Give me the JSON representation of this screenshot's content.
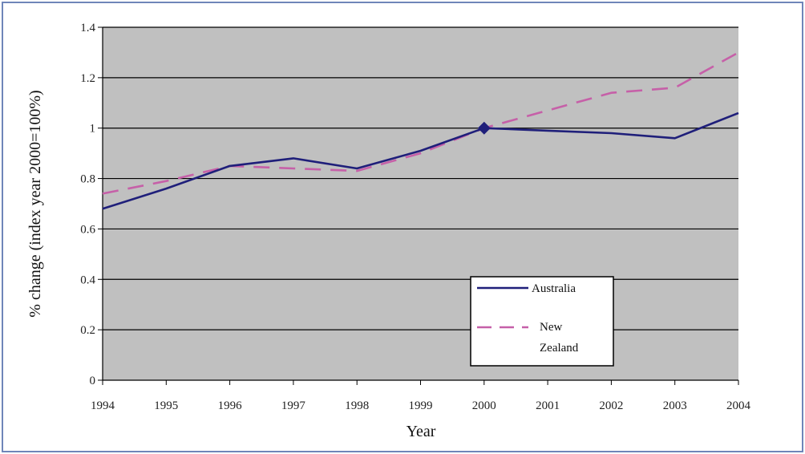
{
  "chart_data": {
    "type": "line",
    "title": "",
    "xlabel": "Year",
    "ylabel": "% change (index year 2000=100%)",
    "categories": [
      "1994",
      "1995",
      "1996",
      "1997",
      "1998",
      "1999",
      "2000",
      "2001",
      "2002",
      "2003",
      "2004"
    ],
    "ylim": [
      0,
      1.4
    ],
    "yticks": [
      "0",
      "0.2",
      "0.4",
      "0.6",
      "0.8",
      "1",
      "1.2",
      "1.4"
    ],
    "grid": true,
    "legend_position": "bottom-right inside",
    "series": [
      {
        "name": "Australia",
        "values": [
          0.68,
          0.76,
          0.85,
          0.88,
          0.84,
          0.91,
          1.0,
          0.99,
          0.98,
          0.96,
          1.06
        ],
        "style": "solid",
        "color": "#1f1f7a",
        "marker_at": "2000"
      },
      {
        "name": "New Zealand",
        "values": [
          0.74,
          0.79,
          0.85,
          0.84,
          0.83,
          0.9,
          1.0,
          1.07,
          1.14,
          1.16,
          1.3
        ],
        "style": "dashed",
        "color": "#c660a8"
      }
    ],
    "legend_entries": [
      "Australia",
      "New",
      "Zealand"
    ]
  },
  "colors": {
    "plot_background": "#c0c0c0",
    "frame_border": "#6f86b9",
    "gridline": "#000000"
  }
}
